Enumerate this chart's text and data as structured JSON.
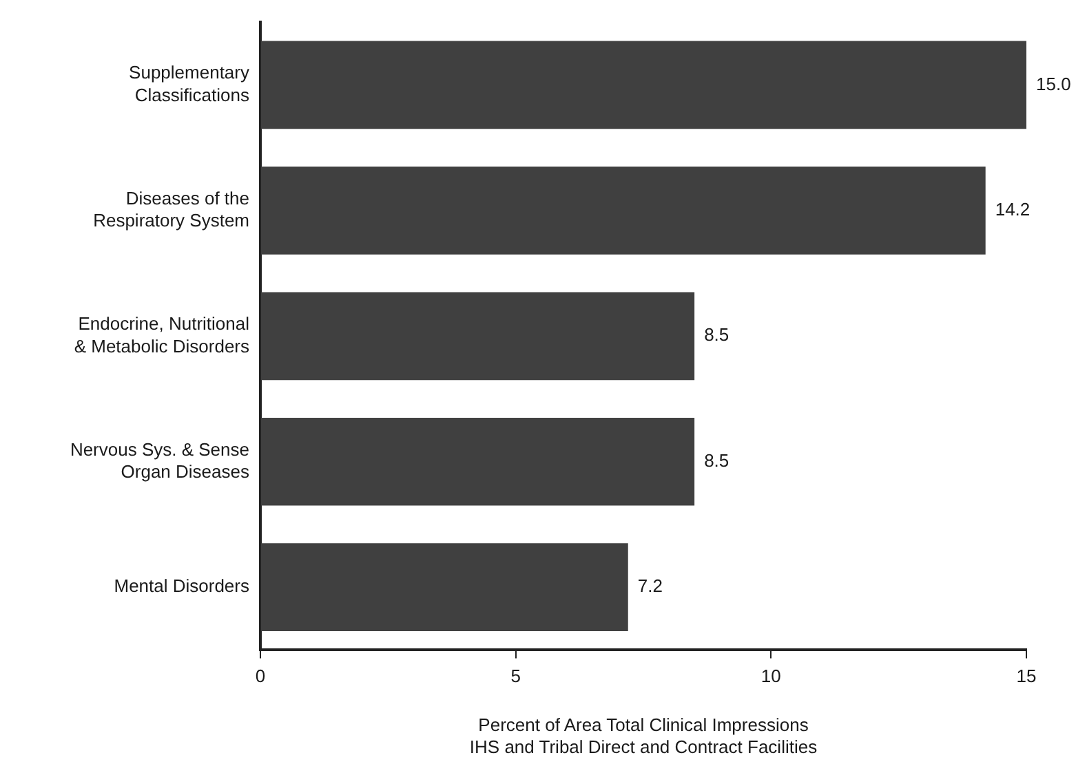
{
  "chart_data": {
    "type": "bar",
    "orientation": "horizontal",
    "categories": [
      "Supplementary Classifications",
      "Diseases of the Respiratory System",
      "Endocrine, Nutritional & Metabolic Disorders",
      "Nervous Sys. & Sense Organ Diseases",
      "Mental Disorders"
    ],
    "values": [
      15.0,
      14.2,
      8.5,
      8.5,
      7.2
    ],
    "value_labels": [
      "15.0",
      "14.2",
      "8.5",
      "8.5",
      "7.2"
    ],
    "color": "#404040",
    "xlim": [
      0,
      15
    ],
    "xticks": [
      0,
      5,
      10,
      15
    ],
    "xlabel": "Percent of Area Total Clinical Impressions\nIHS and Tribal Direct and Contract Facilities",
    "grid": false,
    "legend": false
  }
}
